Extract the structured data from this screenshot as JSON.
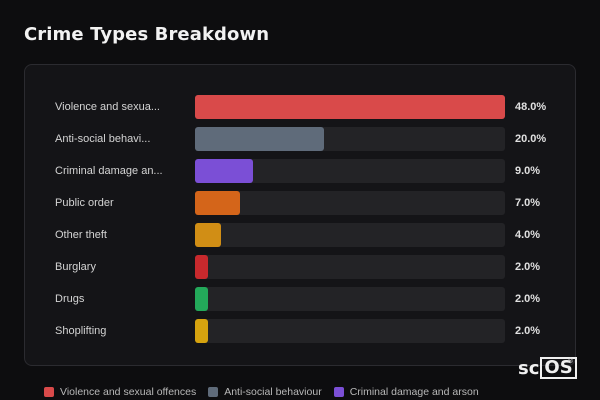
{
  "page": {
    "title": "Crime Types Breakdown"
  },
  "chart_data": {
    "type": "bar",
    "orientation": "horizontal",
    "categories": [
      "Violence and sexua...",
      "Anti-social behavi...",
      "Criminal damage an...",
      "Public order",
      "Other theft",
      "Burglary",
      "Drugs",
      "Shoplifting"
    ],
    "values": [
      48.0,
      20.0,
      9.0,
      7.0,
      4.0,
      2.0,
      2.0,
      2.0
    ],
    "value_labels": [
      "48.0%",
      "20.0%",
      "9.0%",
      "7.0%",
      "4.0%",
      "2.0%",
      "2.0%",
      "2.0%"
    ],
    "colors": [
      "#d94a4a",
      "#5f6b7a",
      "#7b4fd6",
      "#d4651a",
      "#d18e15",
      "#c8292d",
      "#23a95a",
      "#d6a30f"
    ],
    "xlim": [
      0,
      48
    ],
    "title": "Crime Types Breakdown",
    "legend": [
      {
        "label": "Violence and sexual offences",
        "color": "#d94a4a"
      },
      {
        "label": "Anti-social behaviour",
        "color": "#5f6b7a"
      },
      {
        "label": "Criminal damage and arson",
        "color": "#7b4fd6"
      }
    ],
    "legend_position": "bottom"
  },
  "logo": {
    "prefix": "sc",
    "boxed": "OS",
    "mark": "®"
  }
}
